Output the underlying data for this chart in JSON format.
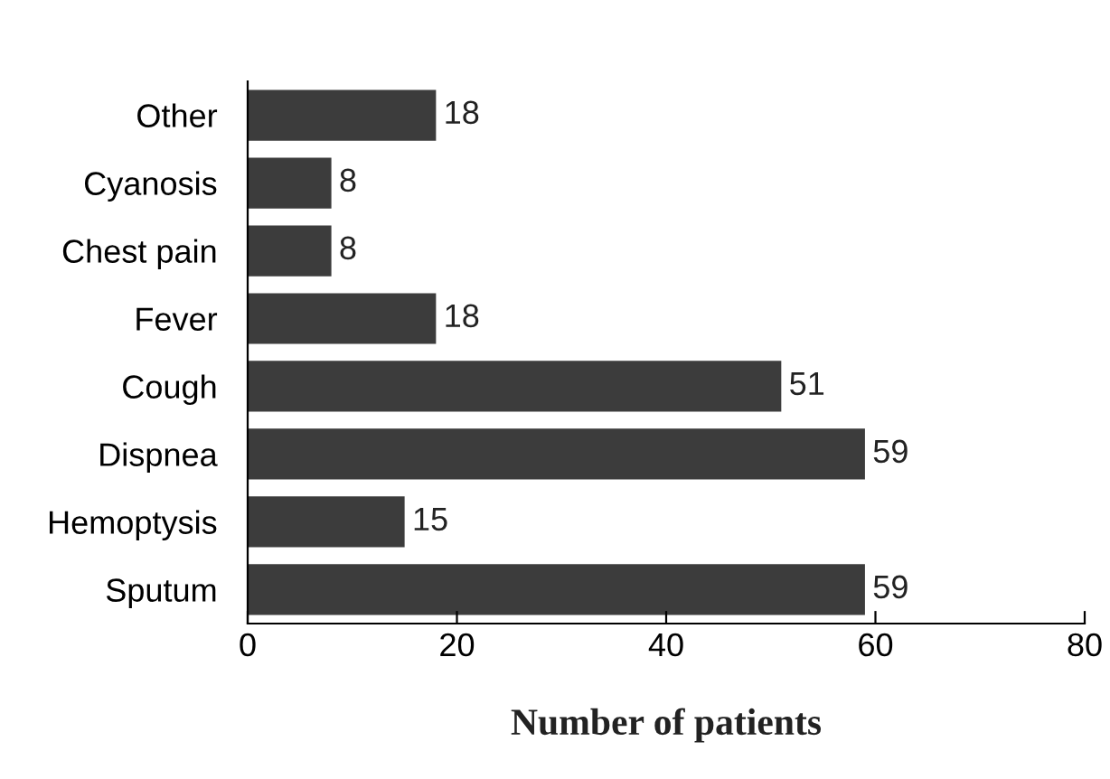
{
  "chart_data": {
    "type": "bar",
    "orientation": "horizontal",
    "xlabel": "Number of patients",
    "categories": [
      "Other",
      "Cyanosis",
      "Chest pain",
      "Fever",
      "Cough",
      "Dispnea",
      "Hemoptysis",
      "Sputum"
    ],
    "values": [
      18,
      8,
      8,
      18,
      51,
      59,
      15,
      59
    ],
    "color": "#3c3c3c",
    "xlim": [
      0,
      80
    ],
    "xticks": [
      0,
      20,
      40,
      60,
      80
    ],
    "data_labels": true,
    "grid": false,
    "legend": false
  }
}
